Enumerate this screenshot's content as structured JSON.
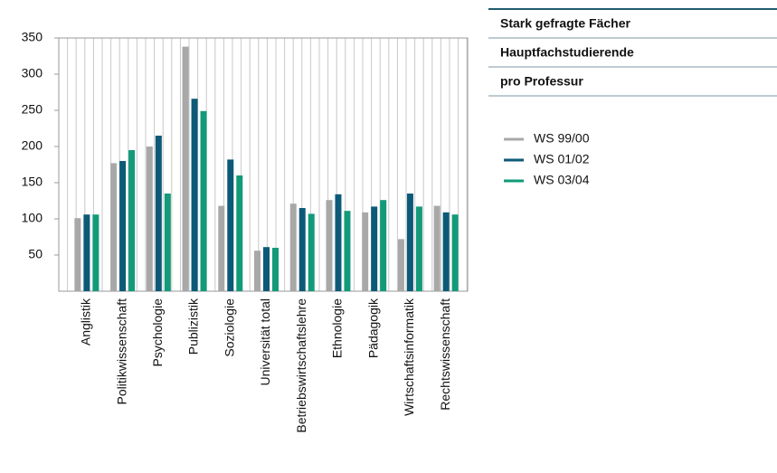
{
  "chart_data": {
    "type": "bar",
    "title_lines": [
      "Stark gefragte Fächer",
      "Hauptfachstudierende",
      "pro Professur"
    ],
    "categories": [
      "Anglistik",
      "Politikwissenschaft",
      "Psychologie",
      "Publizistik",
      "Soziologie",
      "Universität total",
      "Betriebswirtschaftslehre",
      "Ethnologie",
      "Pädagogik",
      "Wirtschaftsinformatik",
      "Rechtswissenschaft"
    ],
    "series": [
      {
        "name": "WS 99/00",
        "color": "#a8a8a8",
        "values": [
          101,
          177,
          200,
          338,
          118,
          56,
          121,
          126,
          109,
          72,
          118
        ]
      },
      {
        "name": "WS 01/02",
        "color": "#0c5a78",
        "values": [
          106,
          180,
          215,
          266,
          182,
          61,
          115,
          134,
          117,
          135,
          109
        ]
      },
      {
        "name": "WS 03/04",
        "color": "#139a79",
        "values": [
          106,
          195,
          135,
          249,
          160,
          60,
          107,
          111,
          126,
          117,
          106
        ]
      }
    ],
    "ylim": [
      0,
      350
    ],
    "yticks": [
      50,
      100,
      150,
      200,
      250,
      300,
      350
    ]
  }
}
